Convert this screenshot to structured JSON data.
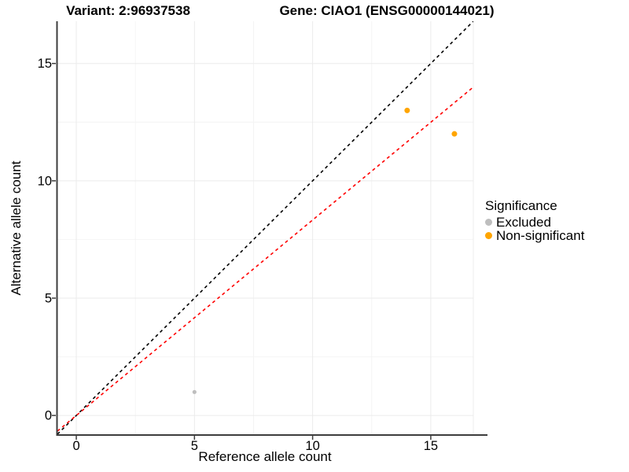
{
  "header": {
    "variant_title": "Variant: 2:96937538",
    "gene_title": "Gene: CIAO1 (ENSG00000144021)"
  },
  "chart_data": {
    "type": "scatter",
    "xlabel": "Reference allele count",
    "ylabel": "Alternative allele count",
    "xlim": [
      -0.8,
      16.8
    ],
    "ylim": [
      -0.8,
      16.8
    ],
    "x_major_ticks": [
      0,
      5,
      10,
      15
    ],
    "y_major_ticks": [
      0,
      5,
      10,
      15
    ],
    "x_minor_ticks": [
      2.5,
      7.5,
      12.5
    ],
    "y_minor_ticks": [
      2.5,
      7.5,
      12.5
    ],
    "grid": true,
    "series": [
      {
        "name": "Excluded",
        "color": "#BEBEBE",
        "point_radius": 2.6,
        "points": [
          {
            "x": 5,
            "y": 1
          }
        ]
      },
      {
        "name": "Non-significant",
        "color": "#FFA500",
        "point_radius": 3.5,
        "points": [
          {
            "x": 14,
            "y": 13
          },
          {
            "x": 16,
            "y": 12
          }
        ]
      }
    ],
    "lines": [
      {
        "name": "identity",
        "slope": 1.0,
        "intercept": 0,
        "color": "#000000",
        "dash": "4 4",
        "width": 1.6
      },
      {
        "name": "allelic-ratio-fit",
        "slope": 0.833,
        "intercept": 0,
        "color": "#FF0000",
        "dash": "4 4",
        "width": 1.6
      }
    ],
    "legend": {
      "title": "Significance",
      "position": "right",
      "entries": [
        {
          "label": "Excluded",
          "color": "#BEBEBE"
        },
        {
          "label": "Non-significant",
          "color": "#FFA500"
        }
      ]
    }
  },
  "colors": {
    "background": "#FFFFFF",
    "grid_major": "#EBEBEB",
    "grid_minor": "#F4F4F4",
    "panel_border": "#ECECEC",
    "axis_line": "#3D3D3D",
    "tick_text": "#000000"
  }
}
